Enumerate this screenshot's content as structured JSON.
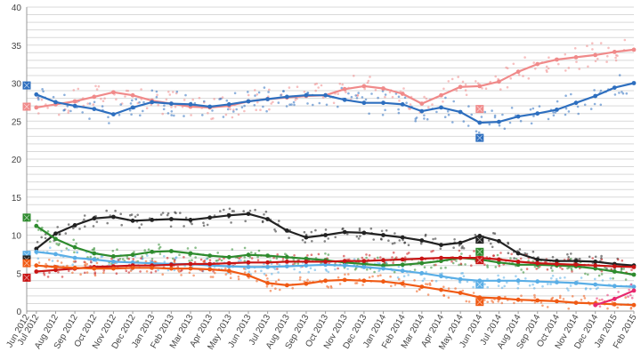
{
  "chart_data": {
    "type": "line",
    "title": "",
    "xlabel": "",
    "ylabel": "",
    "ylim": [
      0,
      40
    ],
    "y_ticks": [
      0,
      5,
      10,
      15,
      20,
      25,
      30,
      35,
      40
    ],
    "y_tick_labels": [
      "0",
      "5",
      "10",
      "15",
      "20",
      "25",
      "30",
      "35",
      "40"
    ],
    "grid": true,
    "legend": "none",
    "x_tick_labels": [
      "Jun 2012",
      "Jul 2012",
      "Aug 2012",
      "Sep 2012",
      "Oct 2012",
      "Nov 2012",
      "Dec 2012",
      "Jan 2013",
      "Feb 2013",
      "Mar 2013",
      "Apr 2013",
      "May 2013",
      "Jun 2013",
      "Jul 2013",
      "Aug 2013",
      "Sep 2013",
      "Oct 2013",
      "Nov 2013",
      "Dec 2013",
      "Jan 2014",
      "Feb 2014",
      "Mar 2014",
      "Apr 2014",
      "May 2014",
      "Jun 2014",
      "Jul 2014",
      "Aug 2014",
      "Sep 2014",
      "Oct 2014",
      "Nov 2014",
      "Dec 2014",
      "Jan 2015",
      "Feb 2015"
    ],
    "x_ticks": [
      0,
      0.5,
      1.5,
      2.5,
      3.5,
      4.5,
      5.5,
      6.5,
      7.5,
      8.5,
      9.5,
      10.5,
      11.5,
      12.5,
      13.5,
      14.5,
      15.5,
      16.5,
      17.5,
      18.5,
      19.5,
      20.5,
      21.5,
      22.5,
      23.5,
      24.5,
      25.5,
      26.5,
      27.5,
      28.5,
      29.5,
      30.5,
      31.5
    ],
    "x_range": [
      0,
      31.5
    ],
    "series": [
      {
        "color": "#f08a8a",
        "x": [
          0.5,
          1.5,
          2.5,
          3.5,
          4.5,
          5.5,
          6.5,
          7.5,
          8.5,
          9.5,
          10.5,
          11.5,
          12.5,
          13.5,
          14.5,
          15.5,
          16.5,
          17.5,
          18.5,
          19.5,
          20.5,
          21.5,
          22.5,
          23.5,
          24.5,
          25.5,
          26.5,
          27.5,
          28.5,
          29.5,
          30.5,
          31.5
        ],
        "values": [
          26.8,
          27.2,
          27.6,
          28.2,
          28.8,
          28.4,
          27.7,
          27.3,
          26.9,
          26.8,
          27.0,
          27.6,
          27.9,
          28.1,
          28.3,
          28.4,
          29.2,
          29.6,
          29.3,
          28.6,
          27.3,
          28.4,
          29.5,
          29.6,
          30.2,
          31.5,
          32.5,
          33.1,
          33.4,
          33.7,
          34.1,
          34.4
        ]
      },
      {
        "color": "#2e6fbf",
        "x": [
          0.5,
          1.5,
          2.5,
          3.5,
          4.5,
          5.5,
          6.5,
          7.5,
          8.5,
          9.5,
          10.5,
          11.5,
          12.5,
          13.5,
          14.5,
          15.5,
          16.5,
          17.5,
          18.5,
          19.5,
          20.5,
          21.5,
          22.5,
          23.5,
          24.5,
          25.5,
          26.5,
          27.5,
          28.5,
          29.5,
          30.5,
          31.5
        ],
        "values": [
          28.5,
          27.5,
          27.0,
          26.6,
          25.9,
          26.8,
          27.5,
          27.3,
          27.2,
          26.9,
          27.2,
          27.6,
          27.9,
          28.2,
          28.4,
          28.4,
          27.8,
          27.4,
          27.4,
          27.2,
          26.3,
          26.8,
          26.2,
          24.8,
          24.9,
          25.6,
          26.0,
          26.5,
          27.4,
          28.3,
          29.4,
          30.0
        ]
      },
      {
        "color": "#222222",
        "x": [
          0.5,
          1.5,
          2.5,
          3.5,
          4.5,
          5.5,
          6.5,
          7.5,
          8.5,
          9.5,
          10.5,
          11.5,
          12.5,
          13.5,
          14.5,
          15.5,
          16.5,
          17.5,
          18.5,
          19.5,
          20.5,
          21.5,
          22.5,
          23.5,
          24.5,
          25.5,
          26.5,
          27.5,
          28.5,
          29.5,
          30.5,
          31.5
        ],
        "values": [
          8.2,
          10.2,
          11.3,
          12.2,
          12.4,
          11.9,
          12.0,
          12.1,
          12.0,
          12.3,
          12.6,
          12.8,
          12.1,
          10.6,
          9.7,
          10.0,
          10.4,
          10.3,
          10.0,
          9.7,
          9.3,
          8.7,
          9.0,
          9.9,
          9.2,
          7.6,
          6.8,
          6.6,
          6.6,
          6.5,
          6.2,
          6.0
        ]
      },
      {
        "color": "#2e8b2e",
        "x": [
          0.5,
          1.5,
          2.5,
          3.5,
          4.5,
          5.5,
          6.5,
          7.5,
          8.5,
          9.5,
          10.5,
          11.5,
          12.5,
          13.5,
          14.5,
          15.5,
          16.5,
          17.5,
          18.5,
          19.5,
          20.5,
          21.5,
          22.5,
          23.5,
          24.5,
          25.5,
          26.5,
          27.5,
          28.5,
          29.5,
          30.5,
          31.5
        ],
        "values": [
          11.2,
          9.5,
          8.4,
          7.6,
          7.2,
          7.4,
          7.8,
          7.9,
          7.6,
          7.3,
          7.1,
          7.4,
          7.3,
          7.1,
          6.9,
          6.7,
          6.4,
          6.2,
          6.0,
          6.1,
          6.3,
          6.6,
          7.0,
          6.8,
          6.4,
          6.1,
          6.1,
          6.0,
          5.9,
          5.6,
          5.2,
          4.8
        ]
      },
      {
        "color": "#5aaee6",
        "x": [
          0.5,
          1.5,
          2.5,
          3.5,
          4.5,
          5.5,
          6.5,
          7.5,
          8.5,
          9.5,
          10.5,
          11.5,
          12.5,
          13.5,
          14.5,
          15.5,
          16.5,
          17.5,
          18.5,
          19.5,
          20.5,
          21.5,
          22.5,
          23.5,
          24.5,
          25.5,
          26.5,
          27.5,
          28.5,
          29.5,
          30.5,
          31.5
        ],
        "values": [
          7.8,
          7.5,
          7.0,
          6.8,
          6.5,
          6.4,
          6.3,
          6.2,
          6.2,
          6.0,
          5.9,
          5.8,
          5.8,
          5.9,
          6.0,
          6.1,
          6.0,
          5.8,
          5.6,
          5.3,
          5.0,
          4.6,
          4.2,
          4.0,
          4.0,
          4.0,
          3.9,
          3.8,
          3.7,
          3.5,
          3.3,
          3.2
        ]
      },
      {
        "color": "#c81414",
        "x": [
          0.5,
          1.5,
          2.5,
          3.5,
          4.5,
          5.5,
          6.5,
          7.5,
          8.5,
          9.5,
          10.5,
          11.5,
          12.5,
          13.5,
          14.5,
          15.5,
          16.5,
          17.5,
          18.5,
          19.5,
          20.5,
          21.5,
          22.5,
          23.5,
          24.5,
          25.5,
          26.5,
          27.5,
          28.5,
          29.5,
          30.5,
          31.5
        ],
        "values": [
          5.2,
          5.4,
          5.6,
          5.8,
          5.9,
          6.0,
          6.0,
          6.1,
          6.2,
          6.2,
          6.3,
          6.4,
          6.4,
          6.5,
          6.5,
          6.5,
          6.6,
          6.6,
          6.7,
          6.8,
          6.9,
          7.0,
          7.0,
          7.0,
          6.8,
          6.5,
          6.3,
          6.2,
          6.1,
          6.0,
          5.9,
          5.8
        ]
      },
      {
        "color": "#f05a14",
        "x": [
          0.5,
          1.5,
          2.5,
          3.5,
          4.5,
          5.5,
          6.5,
          7.5,
          8.5,
          9.5,
          10.5,
          11.5,
          12.5,
          13.5,
          14.5,
          15.5,
          16.5,
          17.5,
          18.5,
          19.5,
          20.5,
          21.5,
          22.5,
          23.5,
          24.5,
          25.5,
          26.5,
          27.5,
          28.5,
          29.5,
          30.5,
          31.5
        ],
        "values": [
          6.0,
          5.8,
          5.7,
          5.6,
          5.6,
          5.7,
          5.7,
          5.6,
          5.6,
          5.5,
          5.3,
          4.7,
          3.7,
          3.4,
          3.6,
          4.0,
          4.1,
          4.0,
          3.9,
          3.6,
          3.2,
          2.8,
          2.4,
          1.8,
          1.7,
          1.5,
          1.4,
          1.3,
          1.1,
          1.0,
          0.9,
          0.8
        ]
      },
      {
        "color": "#e8286e",
        "x": [
          29.5,
          30.5,
          31.5
        ],
        "values": [
          0.8,
          1.6,
          2.7
        ]
      }
    ],
    "markers": [
      {
        "color": "#2e6fbf",
        "x": 0,
        "value": 29.7
      },
      {
        "color": "#f08a8a",
        "x": 0,
        "value": 26.9
      },
      {
        "color": "#2e8b2e",
        "x": 0,
        "value": 12.3
      },
      {
        "color": "#5aaee6",
        "x": 0,
        "value": 7.4
      },
      {
        "color": "#222222",
        "x": 0,
        "value": 6.8
      },
      {
        "color": "#f05a14",
        "x": 0,
        "value": 6.3
      },
      {
        "color": "#c81414",
        "x": 0,
        "value": 4.4
      },
      {
        "color": "#f08a8a",
        "x": 23.5,
        "value": 26.6
      },
      {
        "color": "#2e6fbf",
        "x": 23.5,
        "value": 22.8
      },
      {
        "color": "#222222",
        "x": 23.5,
        "value": 9.4
      },
      {
        "color": "#2e8b2e",
        "x": 23.5,
        "value": 7.8
      },
      {
        "color": "#c81414",
        "x": 23.5,
        "value": 6.7
      },
      {
        "color": "#5aaee6",
        "x": 23.5,
        "value": 3.5
      },
      {
        "color": "#f05a14",
        "x": 23.5,
        "value": 1.2
      }
    ]
  }
}
